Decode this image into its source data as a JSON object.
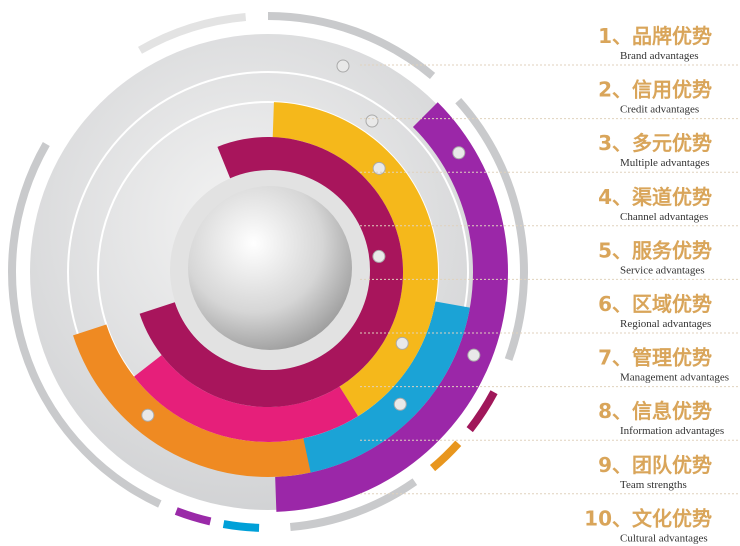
{
  "items": [
    {
      "title": "1、品牌优势",
      "subtitle": "Brand advantages"
    },
    {
      "title": "2、信用优势",
      "subtitle": "Credit advantages"
    },
    {
      "title": "3、多元优势",
      "subtitle": "Multiple advantages"
    },
    {
      "title": "4、渠道优势",
      "subtitle": "Channel advantages"
    },
    {
      "title": "5、服务优势",
      "subtitle": "Service advantages"
    },
    {
      "title": "6、区域优势",
      "subtitle": "Regional advantages"
    },
    {
      "title": "7、管理优势",
      "subtitle": "Management advantages"
    },
    {
      "title": "8、信息优势",
      "subtitle": "Information advantages"
    },
    {
      "title": "9、团队优势",
      "subtitle": "Team strengths"
    },
    {
      "title": "10、文化优势",
      "subtitle": "Cultural advantages"
    }
  ]
}
